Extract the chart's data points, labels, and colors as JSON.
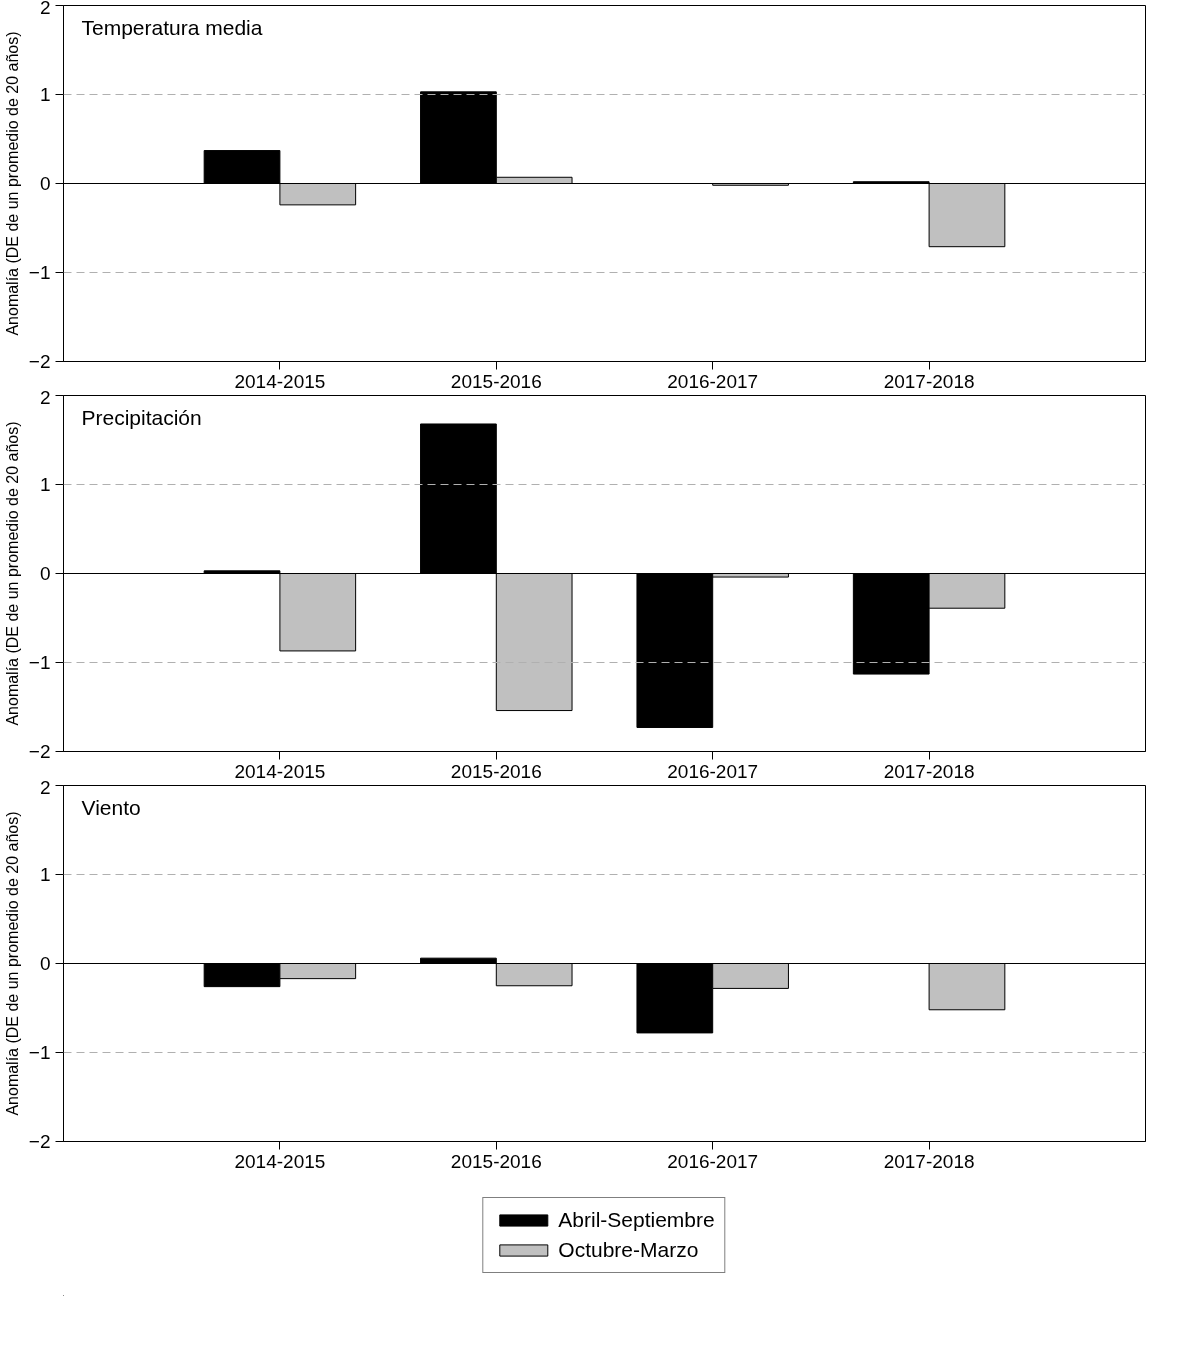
{
  "chart_data": [
    {
      "type": "bar",
      "title": "Temperatura media",
      "ylabel": "Anomalía (DE de un promedio de 20 años)",
      "categories": [
        "2014-2015",
        "2015-2016",
        "2016-2017",
        "2017-2018"
      ],
      "ylim": [
        -2,
        2
      ],
      "yticks": [
        -2,
        -1,
        0,
        1,
        2
      ],
      "grid": false,
      "legend": false,
      "series": [
        {
          "color": "#000000",
          "values": [
            0.37,
            1.03,
            0.0,
            0.02
          ]
        },
        {
          "color": "#c0c0c0",
          "values": [
            -0.24,
            0.07,
            -0.02,
            -0.71
          ]
        }
      ],
      "ref_lines": [
        {
          "axis": "y",
          "value": 1,
          "color": "#b0b0b0",
          "line_style": "dashed"
        },
        {
          "axis": "y",
          "value": -1,
          "color": "#b0b0b0",
          "line_style": "dashed"
        },
        {
          "axis": "y",
          "value": 0,
          "color": "#000000",
          "line_style": "solid"
        }
      ]
    },
    {
      "type": "bar",
      "title": "Precipitación",
      "ylabel": "Anomalía (DE de un promedio de 20 años)",
      "categories": [
        "2014-2015",
        "2015-2016",
        "2016-2017",
        "2017-2018"
      ],
      "ylim": [
        -2,
        2
      ],
      "yticks": [
        -2,
        -1,
        0,
        1,
        2
      ],
      "grid": false,
      "legend": false,
      "series": [
        {
          "color": "#000000",
          "values": [
            0.03,
            1.68,
            -1.73,
            -1.13
          ]
        },
        {
          "color": "#c0c0c0",
          "values": [
            -0.87,
            -1.54,
            -0.04,
            -0.39
          ]
        }
      ],
      "ref_lines": [
        {
          "axis": "y",
          "value": 1,
          "color": "#b0b0b0",
          "line_style": "dashed"
        },
        {
          "axis": "y",
          "value": -1,
          "color": "#b0b0b0",
          "line_style": "dashed"
        },
        {
          "axis": "y",
          "value": 0,
          "color": "#000000",
          "line_style": "solid"
        }
      ]
    },
    {
      "type": "bar",
      "title": "Viento",
      "ylabel": "Anomalía (DE de un promedio de 20 años)",
      "categories": [
        "2014-2015",
        "2015-2016",
        "2016-2017",
        "2017-2018"
      ],
      "ylim": [
        -2,
        2
      ],
      "yticks": [
        -2,
        -1,
        0,
        1,
        2
      ],
      "grid": false,
      "legend": "bottom",
      "series": [
        {
          "name": "Abril-Septiembre",
          "color": "#000000",
          "values": [
            -0.26,
            0.06,
            -0.78,
            null
          ]
        },
        {
          "name": "Octubre-Marzo",
          "color": "#c0c0c0",
          "values": [
            -0.17,
            -0.25,
            -0.28,
            -0.52
          ]
        }
      ],
      "ref_lines": [
        {
          "axis": "y",
          "value": 1,
          "color": "#b0b0b0",
          "line_style": "dashed"
        },
        {
          "axis": "y",
          "value": -1,
          "color": "#b0b0b0",
          "line_style": "dashed"
        },
        {
          "axis": "y",
          "value": 0,
          "color": "#000000",
          "line_style": "solid"
        }
      ]
    }
  ]
}
